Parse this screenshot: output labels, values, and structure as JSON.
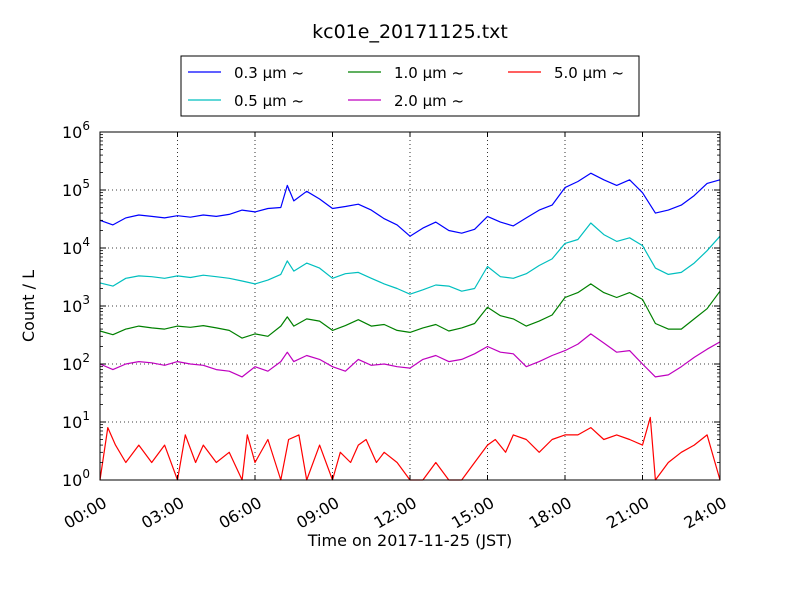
{
  "chart_data": {
    "type": "line",
    "title": "kc01e_20171125.txt",
    "xlabel": "Time on 2017-11-25 (JST)",
    "ylabel": "Count / L",
    "y_scale": "log",
    "ylim": [
      1,
      1000000
    ],
    "xlim": [
      "00:00",
      "24:00"
    ],
    "x_tick_labels": [
      "00:00",
      "03:00",
      "06:00",
      "09:00",
      "12:00",
      "15:00",
      "18:00",
      "21:00",
      "24:00"
    ],
    "y_tick_labels": [
      {
        "base": "10",
        "exp": "0"
      },
      {
        "base": "10",
        "exp": "1"
      },
      {
        "base": "10",
        "exp": "2"
      },
      {
        "base": "10",
        "exp": "3"
      },
      {
        "base": "10",
        "exp": "4"
      },
      {
        "base": "10",
        "exp": "5"
      },
      {
        "base": "10",
        "exp": "6"
      }
    ],
    "grid": true,
    "legend_position": "top, above plot",
    "series": [
      {
        "name": "0.3 μm ~",
        "color": "#0000ff",
        "values": [
          [
            0,
            30000
          ],
          [
            0.5,
            25000
          ],
          [
            1,
            33000
          ],
          [
            1.5,
            37000
          ],
          [
            2,
            35000
          ],
          [
            2.5,
            33000
          ],
          [
            3,
            36000
          ],
          [
            3.5,
            34000
          ],
          [
            4,
            37000
          ],
          [
            4.5,
            35000
          ],
          [
            5,
            38000
          ],
          [
            5.5,
            45000
          ],
          [
            6,
            42000
          ],
          [
            6.5,
            48000
          ],
          [
            7,
            50000
          ],
          [
            7.25,
            120000
          ],
          [
            7.5,
            65000
          ],
          [
            8,
            95000
          ],
          [
            8.5,
            70000
          ],
          [
            9,
            48000
          ],
          [
            9.5,
            52000
          ],
          [
            10,
            57000
          ],
          [
            10.5,
            45000
          ],
          [
            11,
            32000
          ],
          [
            11.5,
            25000
          ],
          [
            12,
            16000
          ],
          [
            12.5,
            22000
          ],
          [
            13,
            28000
          ],
          [
            13.5,
            20000
          ],
          [
            14,
            18000
          ],
          [
            14.5,
            21000
          ],
          [
            15,
            35000
          ],
          [
            15.5,
            28000
          ],
          [
            16,
            24000
          ],
          [
            16.5,
            33000
          ],
          [
            17,
            45000
          ],
          [
            17.5,
            55000
          ],
          [
            18,
            110000
          ],
          [
            18.5,
            140000
          ],
          [
            19,
            195000
          ],
          [
            19.5,
            150000
          ],
          [
            20,
            120000
          ],
          [
            20.5,
            150000
          ],
          [
            21,
            90000
          ],
          [
            21.5,
            40000
          ],
          [
            22,
            45000
          ],
          [
            22.5,
            55000
          ],
          [
            23,
            80000
          ],
          [
            23.5,
            130000
          ],
          [
            24,
            150000
          ]
        ]
      },
      {
        "name": "0.5 μm ~",
        "color": "#00bfbf",
        "values": [
          [
            0,
            2500
          ],
          [
            0.5,
            2200
          ],
          [
            1,
            3000
          ],
          [
            1.5,
            3300
          ],
          [
            2,
            3200
          ],
          [
            2.5,
            3000
          ],
          [
            3,
            3300
          ],
          [
            3.5,
            3100
          ],
          [
            4,
            3400
          ],
          [
            4.5,
            3200
          ],
          [
            5,
            3000
          ],
          [
            5.5,
            2700
          ],
          [
            6,
            2400
          ],
          [
            6.5,
            2800
          ],
          [
            7,
            3500
          ],
          [
            7.25,
            6000
          ],
          [
            7.5,
            4000
          ],
          [
            8,
            5500
          ],
          [
            8.5,
            4500
          ],
          [
            9,
            3000
          ],
          [
            9.5,
            3600
          ],
          [
            10,
            3800
          ],
          [
            10.5,
            3000
          ],
          [
            11,
            2400
          ],
          [
            11.5,
            2000
          ],
          [
            12,
            1600
          ],
          [
            12.5,
            1900
          ],
          [
            13,
            2300
          ],
          [
            13.5,
            2200
          ],
          [
            14,
            1800
          ],
          [
            14.5,
            2000
          ],
          [
            15,
            4800
          ],
          [
            15.5,
            3200
          ],
          [
            16,
            3000
          ],
          [
            16.5,
            3600
          ],
          [
            17,
            5000
          ],
          [
            17.5,
            6500
          ],
          [
            18,
            12000
          ],
          [
            18.5,
            14000
          ],
          [
            19,
            27000
          ],
          [
            19.5,
            17000
          ],
          [
            20,
            13000
          ],
          [
            20.5,
            15000
          ],
          [
            21,
            11000
          ],
          [
            21.5,
            4500
          ],
          [
            22,
            3500
          ],
          [
            22.5,
            3800
          ],
          [
            23,
            5500
          ],
          [
            23.5,
            9000
          ],
          [
            24,
            16000
          ]
        ]
      },
      {
        "name": "1.0 μm ~",
        "color": "#008000",
        "values": [
          [
            0,
            370
          ],
          [
            0.5,
            320
          ],
          [
            1,
            400
          ],
          [
            1.5,
            450
          ],
          [
            2,
            420
          ],
          [
            2.5,
            400
          ],
          [
            3,
            450
          ],
          [
            3.5,
            430
          ],
          [
            4,
            460
          ],
          [
            4.5,
            420
          ],
          [
            5,
            380
          ],
          [
            5.5,
            280
          ],
          [
            6,
            330
          ],
          [
            6.5,
            300
          ],
          [
            7,
            450
          ],
          [
            7.25,
            650
          ],
          [
            7.5,
            450
          ],
          [
            8,
            600
          ],
          [
            8.5,
            550
          ],
          [
            9,
            380
          ],
          [
            9.5,
            460
          ],
          [
            10,
            580
          ],
          [
            10.5,
            450
          ],
          [
            11,
            480
          ],
          [
            11.5,
            380
          ],
          [
            12,
            350
          ],
          [
            12.5,
            420
          ],
          [
            13,
            480
          ],
          [
            13.5,
            370
          ],
          [
            14,
            420
          ],
          [
            14.5,
            500
          ],
          [
            15,
            950
          ],
          [
            15.5,
            680
          ],
          [
            16,
            600
          ],
          [
            16.5,
            450
          ],
          [
            17,
            550
          ],
          [
            17.5,
            700
          ],
          [
            18,
            1400
          ],
          [
            18.5,
            1700
          ],
          [
            19,
            2400
          ],
          [
            19.5,
            1700
          ],
          [
            20,
            1400
          ],
          [
            20.5,
            1700
          ],
          [
            21,
            1300
          ],
          [
            21.5,
            500
          ],
          [
            22,
            400
          ],
          [
            22.5,
            400
          ],
          [
            23,
            600
          ],
          [
            23.5,
            900
          ],
          [
            24,
            1800
          ]
        ]
      },
      {
        "name": "2.0 μm ~",
        "color": "#bf00bf",
        "values": [
          [
            0,
            100
          ],
          [
            0.5,
            80
          ],
          [
            1,
            100
          ],
          [
            1.5,
            110
          ],
          [
            2,
            105
          ],
          [
            2.5,
            95
          ],
          [
            3,
            110
          ],
          [
            3.5,
            100
          ],
          [
            4,
            95
          ],
          [
            4.5,
            80
          ],
          [
            5,
            75
          ],
          [
            5.5,
            60
          ],
          [
            6,
            90
          ],
          [
            6.5,
            75
          ],
          [
            7,
            110
          ],
          [
            7.25,
            160
          ],
          [
            7.5,
            110
          ],
          [
            8,
            140
          ],
          [
            8.5,
            120
          ],
          [
            9,
            90
          ],
          [
            9.5,
            75
          ],
          [
            10,
            120
          ],
          [
            10.5,
            95
          ],
          [
            11,
            100
          ],
          [
            11.5,
            90
          ],
          [
            12,
            85
          ],
          [
            12.5,
            120
          ],
          [
            13,
            140
          ],
          [
            13.5,
            110
          ],
          [
            14,
            120
          ],
          [
            14.5,
            150
          ],
          [
            15,
            200
          ],
          [
            15.5,
            160
          ],
          [
            16,
            150
          ],
          [
            16.5,
            90
          ],
          [
            17,
            110
          ],
          [
            17.5,
            140
          ],
          [
            18,
            170
          ],
          [
            18.5,
            220
          ],
          [
            19,
            330
          ],
          [
            19.5,
            230
          ],
          [
            20,
            160
          ],
          [
            20.5,
            170
          ],
          [
            21,
            100
          ],
          [
            21.5,
            60
          ],
          [
            22,
            65
          ],
          [
            22.5,
            90
          ],
          [
            23,
            130
          ],
          [
            23.5,
            180
          ],
          [
            24,
            240
          ]
        ]
      },
      {
        "name": "5.0 μm ~",
        "color": "#ff0000",
        "values": [
          [
            0,
            1
          ],
          [
            0.3,
            8
          ],
          [
            0.6,
            4
          ],
          [
            1,
            2
          ],
          [
            1.5,
            4
          ],
          [
            2,
            2
          ],
          [
            2.5,
            4
          ],
          [
            3,
            1
          ],
          [
            3.3,
            6
          ],
          [
            3.7,
            2
          ],
          [
            4,
            4
          ],
          [
            4.5,
            2
          ],
          [
            5,
            3
          ],
          [
            5.5,
            1
          ],
          [
            5.7,
            6
          ],
          [
            6,
            2
          ],
          [
            6.5,
            5
          ],
          [
            7,
            1
          ],
          [
            7.3,
            5
          ],
          [
            7.7,
            6
          ],
          [
            8,
            1
          ],
          [
            8.5,
            4
          ],
          [
            9,
            1
          ],
          [
            9.3,
            3
          ],
          [
            9.7,
            2
          ],
          [
            10,
            4
          ],
          [
            10.3,
            5
          ],
          [
            10.7,
            2
          ],
          [
            11,
            3
          ],
          [
            11.5,
            2
          ],
          [
            12,
            1
          ],
          [
            12.5,
            1
          ],
          [
            13,
            2
          ],
          [
            13.5,
            1
          ],
          [
            14,
            1
          ],
          [
            14.5,
            2
          ],
          [
            15,
            4
          ],
          [
            15.3,
            5
          ],
          [
            15.7,
            3
          ],
          [
            16,
            6
          ],
          [
            16.5,
            5
          ],
          [
            17,
            3
          ],
          [
            17.5,
            5
          ],
          [
            18,
            6
          ],
          [
            18.5,
            6
          ],
          [
            19,
            8
          ],
          [
            19.5,
            5
          ],
          [
            20,
            6
          ],
          [
            20.5,
            5
          ],
          [
            21,
            4
          ],
          [
            21.3,
            12
          ],
          [
            21.5,
            1
          ],
          [
            22,
            2
          ],
          [
            22.5,
            3
          ],
          [
            23,
            4
          ],
          [
            23.5,
            6
          ],
          [
            24,
            1
          ]
        ]
      }
    ]
  }
}
